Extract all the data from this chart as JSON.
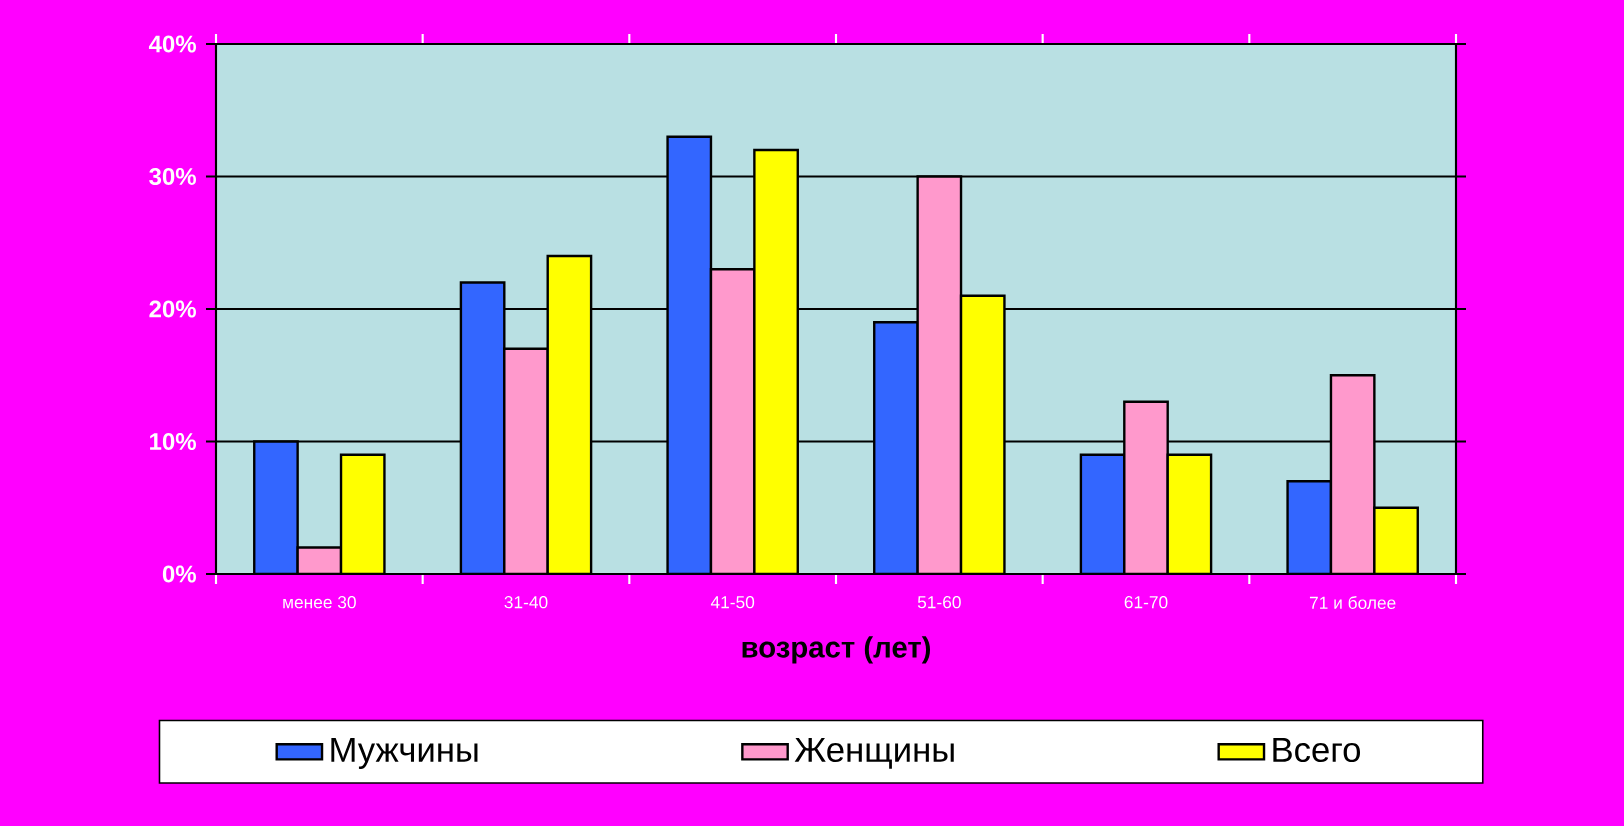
{
  "chart_data": {
    "type": "bar",
    "categories": [
      "менее 30",
      "31-40",
      "41-50",
      "51-60",
      "61-70",
      "71 и более"
    ],
    "series": [
      {
        "name": "Мужчины",
        "color": "#3366ff",
        "values": [
          10,
          22,
          33,
          19,
          9,
          7
        ]
      },
      {
        "name": "Женщины",
        "color": "#ff99cc",
        "values": [
          2,
          17,
          23,
          30,
          13,
          15
        ]
      },
      {
        "name": "Всего",
        "color": "#ffff00",
        "values": [
          9,
          24,
          32,
          21,
          9,
          5
        ]
      }
    ],
    "xlabel": "возраст (лет)",
    "ylim": [
      0,
      40
    ],
    "yticks": [
      {
        "value": 0,
        "label": "0%"
      },
      {
        "value": 10,
        "label": "10%"
      },
      {
        "value": 20,
        "label": "20%"
      },
      {
        "value": 30,
        "label": "30%"
      },
      {
        "value": 40,
        "label": "40%"
      }
    ],
    "grid": "y",
    "legend": "bottom"
  }
}
